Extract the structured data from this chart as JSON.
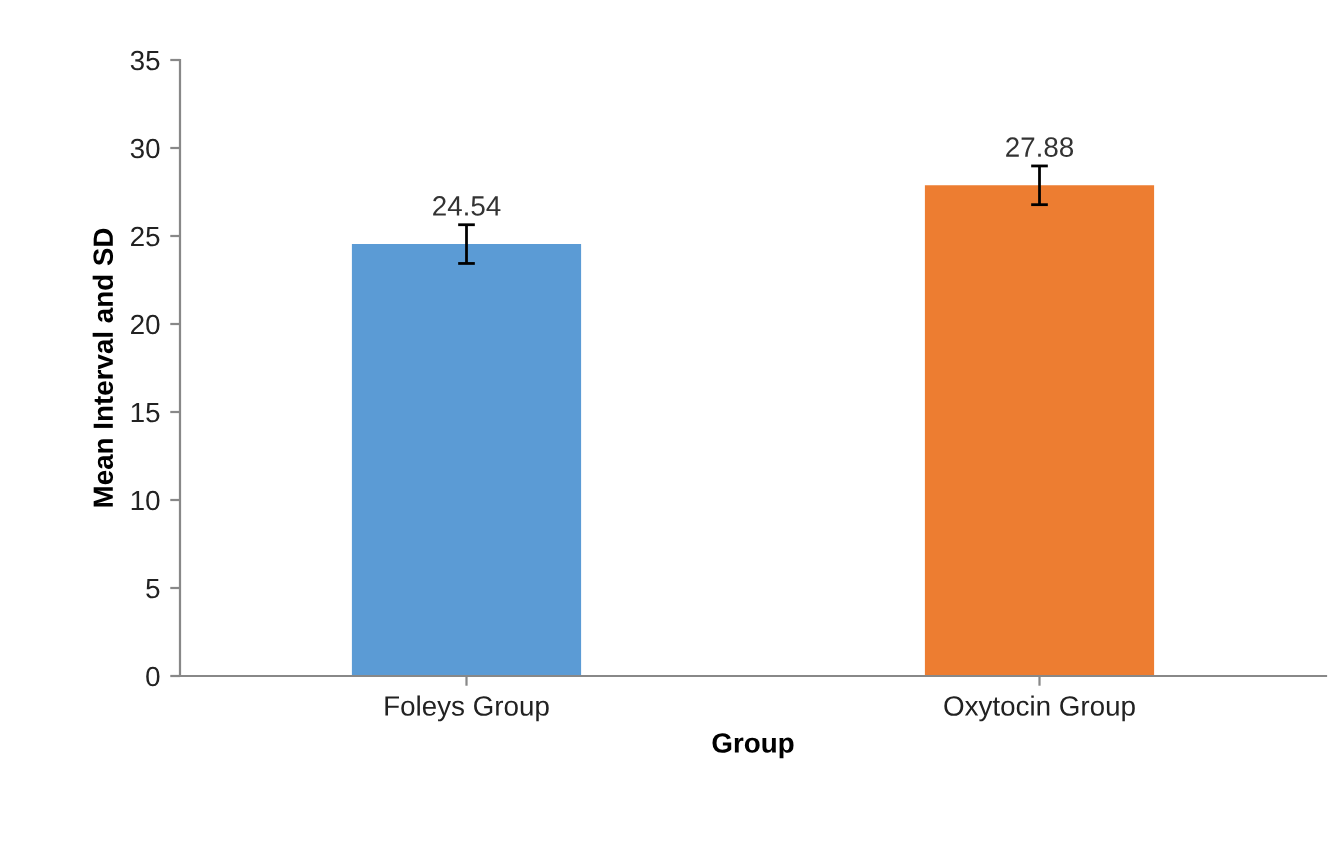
{
  "chart_data": {
    "type": "bar",
    "xlabel": "Group",
    "ylabel": "Mean Interval and SD",
    "categories": [
      "Foleys Group",
      "Oxytocin Group"
    ],
    "values": [
      24.54,
      27.88
    ],
    "colors": [
      "#5b9bd5",
      "#ed7d31"
    ],
    "errors": [
      1.1,
      1.1
    ],
    "data_labels": true,
    "ylim": [
      0,
      35
    ],
    "yticks": [
      0,
      5,
      10,
      15,
      20,
      25,
      30,
      35
    ],
    "grid": false,
    "legend": false
  }
}
